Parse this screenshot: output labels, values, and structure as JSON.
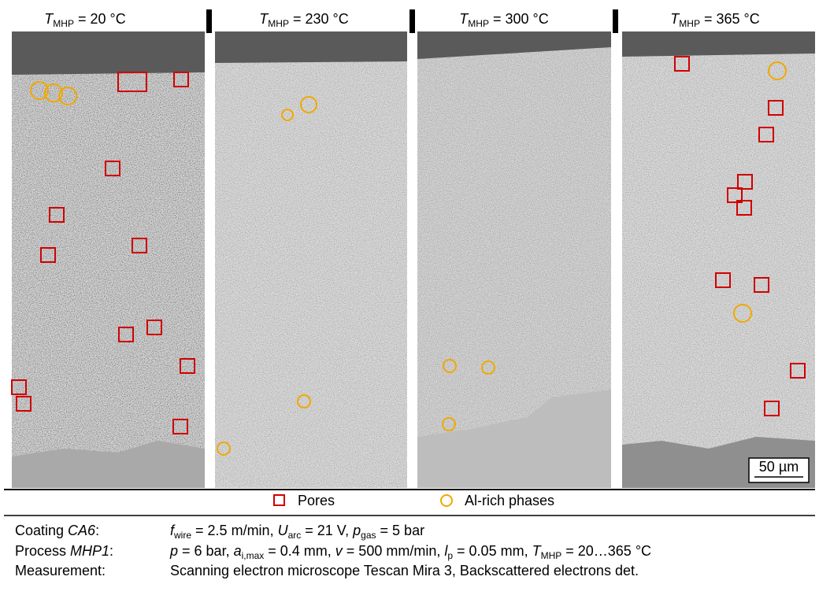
{
  "panels": [
    {
      "title": [
        "T",
        "MHP",
        " = 20 °C"
      ]
    },
    {
      "title": [
        "T",
        "MHP",
        " = 230 °C"
      ]
    },
    {
      "title": [
        "T",
        "MHP",
        " = 300 °C"
      ]
    },
    {
      "title": [
        "T",
        "MHP",
        " = 365 °C"
      ]
    }
  ],
  "scale_bar": "50 µm",
  "legend": {
    "pores": "Pores",
    "al_rich": "Al-rich phases"
  },
  "caption": {
    "rows": [
      {
        "label": [
          "Coating ",
          "CA6",
          ":"
        ],
        "value": [
          "f",
          "wire",
          " = 2.5 m/min, ",
          "U",
          "arc",
          " = 21 V, ",
          "p",
          "gas",
          " = 5 bar"
        ]
      },
      {
        "label": [
          "Process ",
          "MHP1",
          ":"
        ],
        "value": [
          "p",
          " = 6 bar, ",
          "a",
          "i,max",
          " = 0.4 mm, ",
          "v",
          " = 500 mm/min, ",
          "l",
          "p",
          " = 0.05 mm, ",
          "T",
          "MHP",
          " = 20…365 °C"
        ]
      },
      {
        "label": [
          "Measurement:"
        ],
        "value": [
          "Scanning electron microscope Tescan Mira 3, Backscattered electrons det."
        ]
      }
    ]
  }
}
